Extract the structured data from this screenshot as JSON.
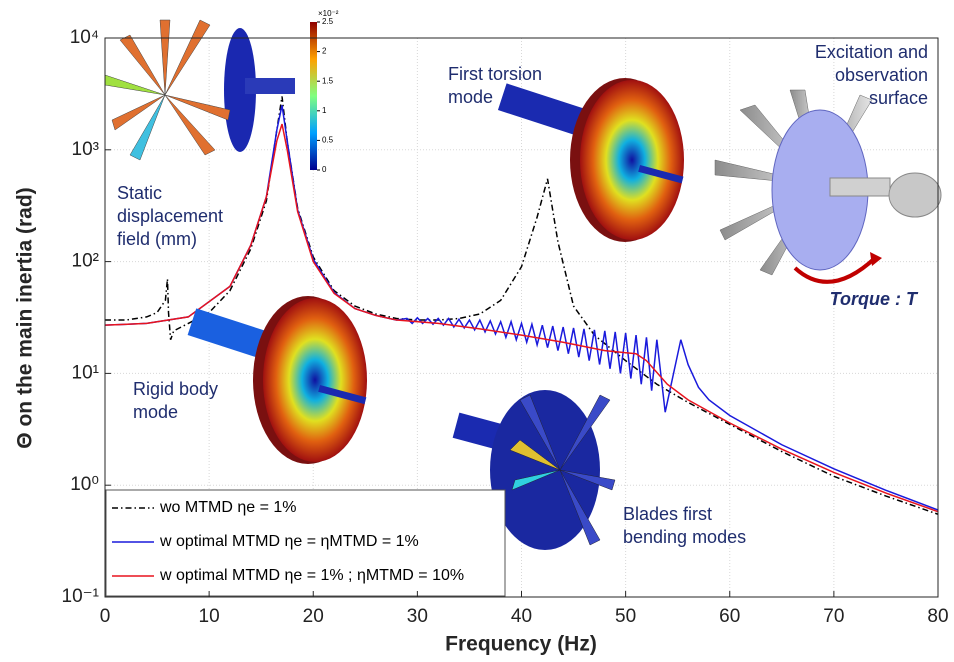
{
  "chart_data": {
    "type": "line",
    "xlabel": "Frequency (Hz)",
    "ylabel": "Θ on the main inertia (rad)",
    "xlim": [
      0,
      80
    ],
    "xticks": [
      0,
      10,
      20,
      30,
      40,
      50,
      60,
      70,
      80
    ],
    "ylim": [
      0.1,
      10000
    ],
    "log_y": true,
    "yticks": [
      {
        "value": 0.1,
        "label": "10⁻¹"
      },
      {
        "value": 1,
        "label": "10⁰"
      },
      {
        "value": 10,
        "label": "10¹"
      },
      {
        "value": 100,
        "label": "10²"
      },
      {
        "value": 1000,
        "label": "10³"
      },
      {
        "value": 10000,
        "label": "10⁴"
      }
    ],
    "grid": true,
    "legend": "lower left",
    "series": [
      {
        "name": "wo MTMD ηe = 1%",
        "color": "#000000",
        "dash": "dashdot",
        "x": [
          0,
          2,
          4,
          5,
          5.8,
          6,
          6.1,
          6.3,
          6.6,
          8,
          10,
          12,
          14,
          15.5,
          16.5,
          17,
          17.5,
          18.5,
          20,
          22,
          24,
          26,
          28,
          30,
          32,
          34,
          36,
          38,
          40,
          41.5,
          42.5,
          43.5,
          45,
          47,
          50,
          53,
          56,
          60,
          65,
          70,
          75,
          80
        ],
        "values": [
          30,
          30,
          32,
          35,
          45,
          70,
          35,
          20,
          24,
          28,
          35,
          55,
          130,
          350,
          1500,
          3000,
          1200,
          300,
          110,
          55,
          40,
          34,
          31,
          30,
          30,
          31,
          34,
          45,
          90,
          250,
          550,
          150,
          40,
          22,
          13,
          8,
          5.5,
          3.5,
          2,
          1.2,
          0.8,
          0.55
        ]
      },
      {
        "name": "w optimal MTMD ηe = ηMTMD = 1%",
        "color": "#1a1adc",
        "dash": "solid",
        "x": [
          0,
          4,
          8,
          12,
          14,
          15.5,
          16.5,
          17,
          17.5,
          18.5,
          20,
          22,
          24,
          26,
          28,
          29,
          29.5,
          30,
          30.5,
          31,
          31.5,
          32,
          32.5,
          33,
          33.5,
          34,
          34.5,
          35,
          35.5,
          36,
          36.5,
          37,
          37.5,
          38,
          38.5,
          39,
          39.5,
          40,
          40.5,
          41,
          41.5,
          42,
          42.5,
          43,
          43.5,
          44,
          44.5,
          45,
          45.5,
          46,
          46.5,
          47,
          47.5,
          48,
          48.5,
          49,
          49.5,
          50,
          50.5,
          51,
          51.5,
          52,
          52.5,
          53,
          53.8,
          55.3,
          56,
          57,
          58,
          60,
          65,
          70,
          75,
          80
        ],
        "values": [
          27,
          28,
          32,
          60,
          140,
          380,
          1500,
          2500,
          1200,
          290,
          105,
          53,
          38,
          33,
          30,
          31,
          28,
          31.5,
          28,
          31,
          27.5,
          31,
          27,
          31,
          26,
          30.5,
          25.5,
          30,
          24.5,
          30,
          23.5,
          29.5,
          22.5,
          29,
          21,
          29,
          20,
          28,
          19,
          27.5,
          18,
          27,
          17,
          26.5,
          16,
          26,
          15,
          25.5,
          14,
          25,
          13,
          24.5,
          12,
          24,
          11,
          23.5,
          10,
          23,
          9,
          22,
          8,
          21,
          7,
          20,
          4.5,
          20,
          12,
          7.5,
          5.8,
          4.2,
          2.3,
          1.4,
          0.9,
          0.6
        ]
      },
      {
        "name": "w optimal MTMD ηe = 1% ; ηMTMD = 10%",
        "color": "#e8141e",
        "dash": "solid",
        "x": [
          0,
          4,
          8,
          12,
          14,
          15.5,
          16.5,
          17,
          17.5,
          18.5,
          20,
          22,
          24,
          26,
          28,
          32,
          36,
          40,
          44,
          48,
          51,
          52,
          54,
          56,
          60,
          65,
          70,
          75,
          80
        ],
        "values": [
          27,
          28,
          32,
          60,
          140,
          380,
          1200,
          1700,
          1000,
          280,
          100,
          52,
          38,
          33,
          30,
          28,
          25,
          22,
          19,
          16,
          15,
          13,
          8,
          5.8,
          3.6,
          2.1,
          1.3,
          0.85,
          0.58
        ]
      }
    ],
    "annotations": [
      {
        "lines": [
          "Static",
          "displacement",
          "field (mm)"
        ]
      },
      {
        "lines": [
          "Rigid body",
          "mode"
        ]
      },
      {
        "lines": [
          "First torsion",
          "mode"
        ]
      },
      {
        "lines": [
          "Blades first",
          "bending modes"
        ]
      },
      {
        "lines": [
          "Excitation and",
          "observation",
          "surface"
        ]
      },
      {
        "lines": [
          "Torque : T"
        ]
      }
    ],
    "colorbar": {
      "label": "×10⁻²",
      "lim": [
        0,
        2.5
      ],
      "ticks": [
        0,
        0.5,
        1,
        1.5,
        2,
        2.5
      ]
    }
  }
}
